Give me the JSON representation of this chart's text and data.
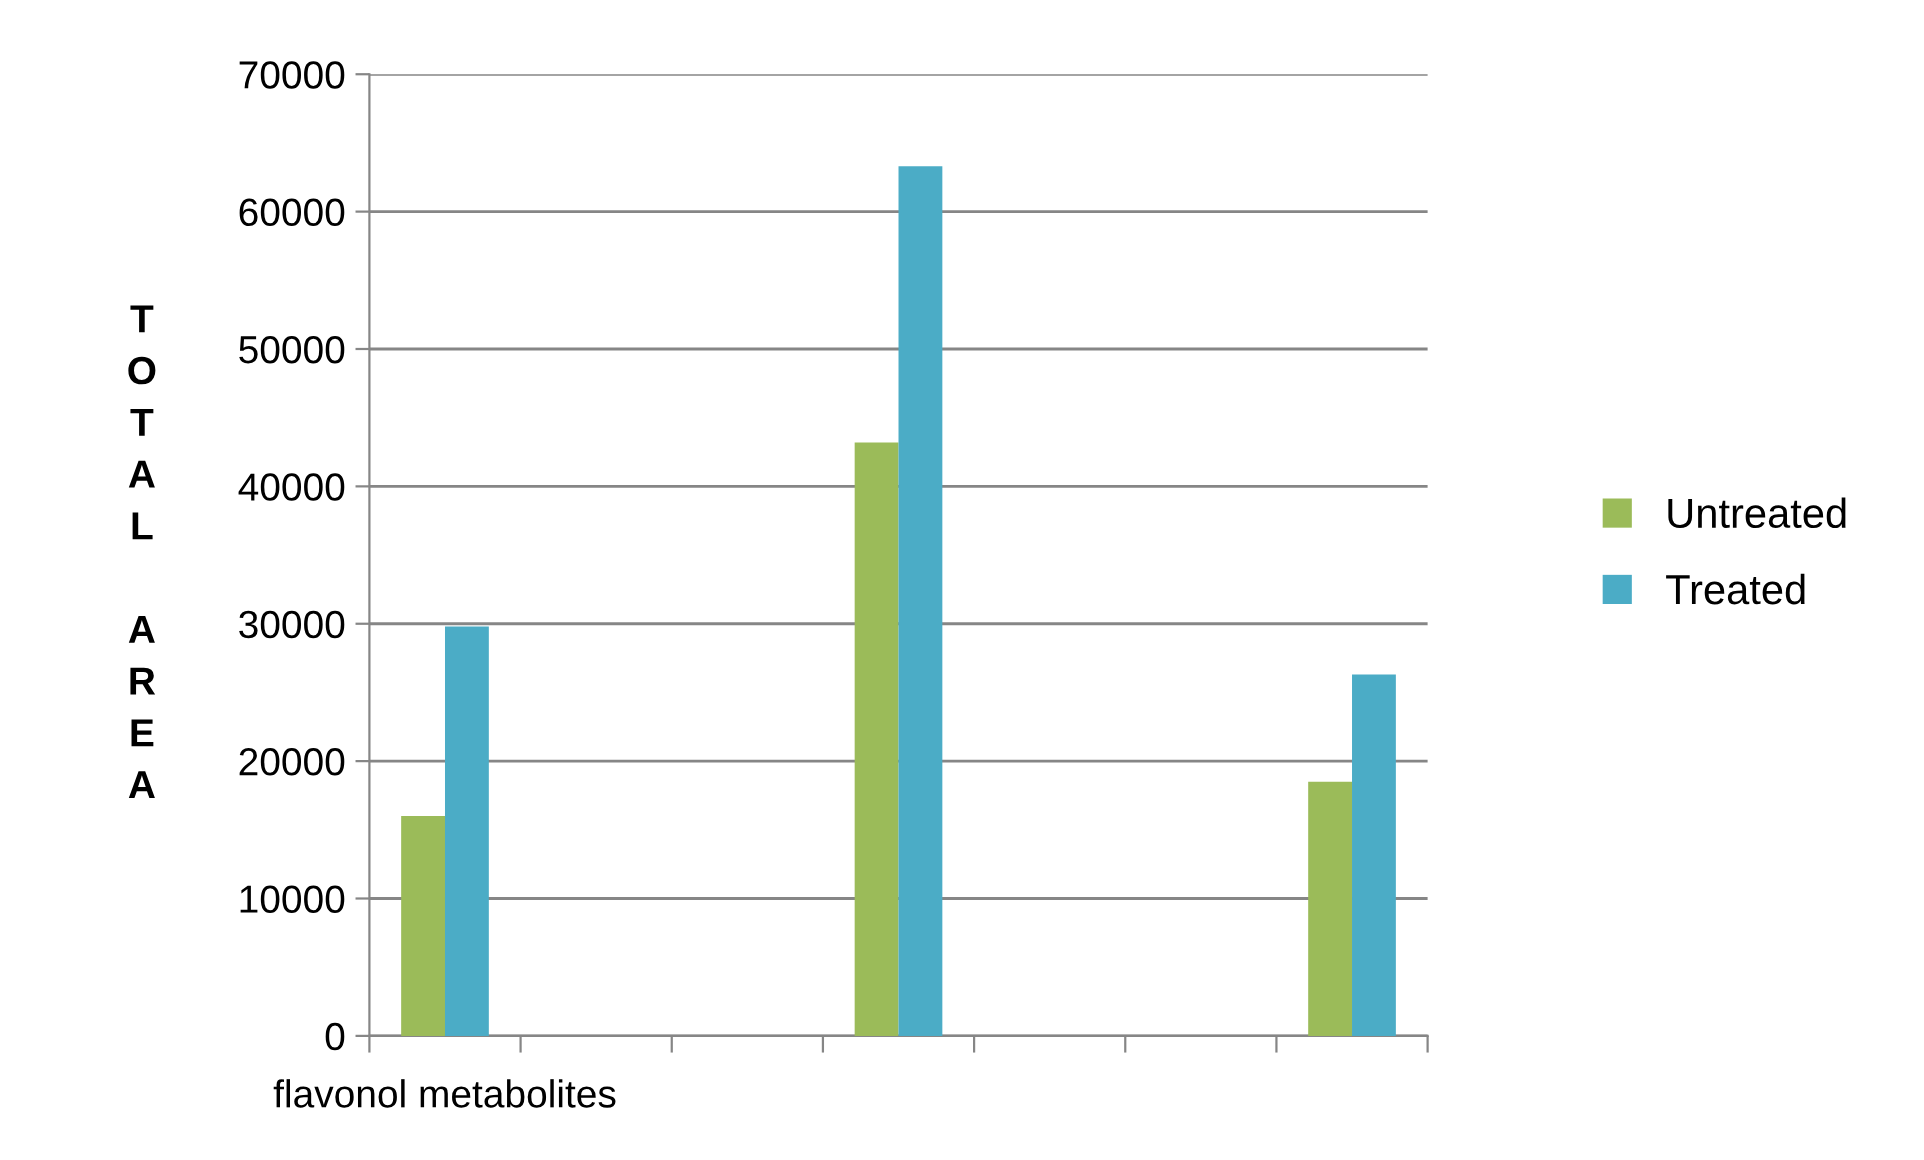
{
  "chart_data": {
    "type": "bar",
    "ylabel": "TOTAL AREA",
    "categories": [
      "flavonol metabolites",
      null,
      null,
      null,
      null,
      null,
      null
    ],
    "series": [
      {
        "name": "Untreated",
        "color": "#9bbb59",
        "values": [
          16000,
          null,
          null,
          43200,
          null,
          null,
          18500
        ]
      },
      {
        "name": "Treated",
        "color": "#4bacc6",
        "values": [
          29800,
          null,
          null,
          63300,
          null,
          null,
          26300
        ]
      }
    ],
    "ylim": [
      0,
      70000
    ],
    "yticks": [
      0,
      10000,
      20000,
      30000,
      40000,
      50000,
      60000,
      70000
    ],
    "grid": "y",
    "legend": "right"
  }
}
